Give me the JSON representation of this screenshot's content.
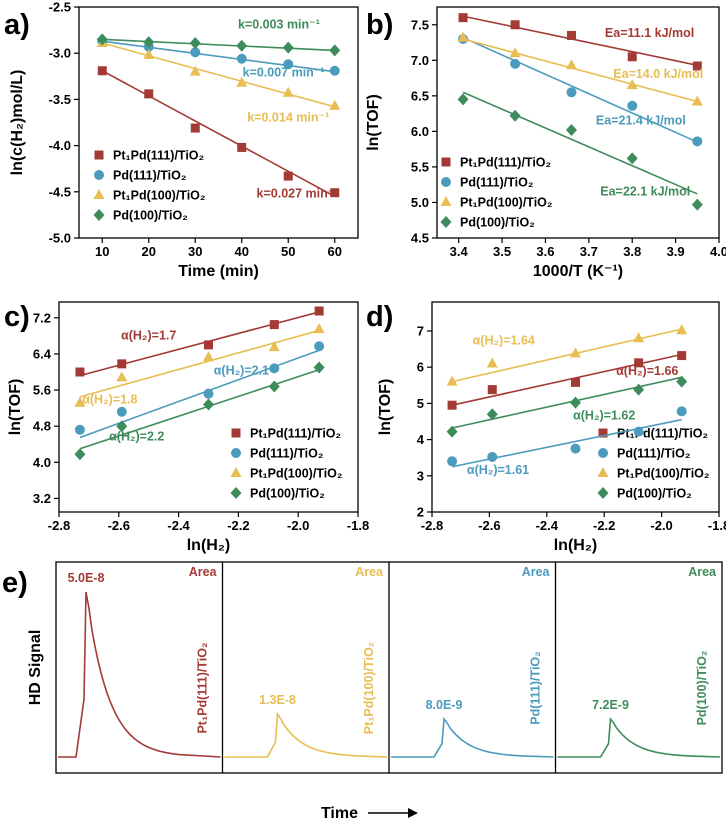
{
  "colors": {
    "pt_pd111": "#a33a35",
    "pd111": "#4b9bbd",
    "pt_pd100": "#e8bd52",
    "pd100": "#3e8c5c"
  },
  "chart_data": [
    {
      "panel": "a)",
      "type": "scatter",
      "xlabel": "Time (min)",
      "ylabel": "ln(c(H₂)mol/L)",
      "xlim": [
        5,
        65
      ],
      "ylim": [
        -5.0,
        -2.5
      ],
      "xticks": [
        10,
        20,
        30,
        40,
        50,
        60
      ],
      "yticks": [
        -5.0,
        -4.5,
        -4.0,
        -3.5,
        -3.0,
        -2.5
      ],
      "ydecimals": 1,
      "series": [
        {
          "name": "Pt₁Pd(111)/TiO₂",
          "key": "pt_pd111",
          "marker": "square",
          "x": [
            10,
            20,
            30,
            40,
            50,
            60
          ],
          "y": [
            -3.19,
            -3.44,
            -3.81,
            -4.02,
            -4.33,
            -4.51
          ],
          "fit": [
            [
              10,
              -3.19
            ],
            [
              60,
              -4.55
            ]
          ],
          "label": "k=0.027 min⁻¹",
          "label_at": [
            52,
            -4.56
          ]
        },
        {
          "name": "Pd(111)/TiO₂",
          "key": "pd111",
          "marker": "circle",
          "x": [
            10,
            20,
            30,
            40,
            50,
            60
          ],
          "y": [
            -2.87,
            -2.93,
            -2.99,
            -3.06,
            -3.12,
            -3.19
          ],
          "fit": [
            [
              10,
              -2.87
            ],
            [
              60,
              -3.2
            ]
          ],
          "label": "k=0.007 min⁻¹",
          "label_at": [
            49,
            -3.25
          ]
        },
        {
          "name": "Pt₁Pd(100)/TiO₂",
          "key": "pt_pd100",
          "marker": "triangle",
          "x": [
            10,
            20,
            30,
            40,
            50,
            60
          ],
          "y": [
            -2.89,
            -3.02,
            -3.2,
            -3.32,
            -3.43,
            -3.57
          ],
          "fit": [
            [
              10,
              -2.89
            ],
            [
              60,
              -3.58
            ]
          ],
          "label": "k=0.014 min⁻¹",
          "label_at": [
            50,
            -3.74
          ]
        },
        {
          "name": "Pd(100)/TiO₂",
          "key": "pd100",
          "marker": "diamond",
          "x": [
            10,
            20,
            30,
            40,
            50,
            60
          ],
          "y": [
            -2.85,
            -2.88,
            -2.89,
            -2.92,
            -2.94,
            -2.97
          ],
          "fit": [
            [
              10,
              -2.85
            ],
            [
              60,
              -2.97
            ]
          ],
          "label": "k=0.003 min⁻¹",
          "label_at": [
            48,
            -2.73
          ]
        }
      ]
    },
    {
      "panel": "b)",
      "type": "scatter",
      "xlabel": "1000/T (K⁻¹)",
      "ylabel": "ln(TOF)",
      "xlim": [
        3.35,
        4.0
      ],
      "ylim": [
        4.5,
        7.75
      ],
      "xticks": [
        3.4,
        3.5,
        3.6,
        3.7,
        3.8,
        3.9,
        4.0
      ],
      "yticks": [
        4.5,
        5.0,
        5.5,
        6.0,
        6.5,
        7.0,
        7.5
      ],
      "ydecimals": 1,
      "series": [
        {
          "name": "Pt₁Pd(111)/TiO₂",
          "key": "pt_pd111",
          "marker": "square",
          "x": [
            3.41,
            3.53,
            3.66,
            3.8,
            3.95
          ],
          "y": [
            7.6,
            7.5,
            7.35,
            7.05,
            6.92
          ],
          "fit": [
            [
              3.41,
              7.62
            ],
            [
              3.95,
              6.93
            ]
          ],
          "label": "Ea=11.1 kJ/mol",
          "label_at": [
            3.84,
            7.33
          ]
        },
        {
          "name": "Pd(111)/TiO₂",
          "key": "pd111",
          "marker": "circle",
          "x": [
            3.41,
            3.53,
            3.66,
            3.8,
            3.95
          ],
          "y": [
            7.3,
            6.95,
            6.55,
            6.36,
            5.86
          ],
          "fit": [
            [
              3.41,
              7.32
            ],
            [
              3.95,
              5.85
            ]
          ],
          "label": "Ea=21.4 kJ/mol",
          "label_at": [
            3.82,
            6.1
          ]
        },
        {
          "name": "Pt₁Pd(100)/TiO₂",
          "key": "pt_pd100",
          "marker": "triangle",
          "x": [
            3.41,
            3.53,
            3.66,
            3.8,
            3.95
          ],
          "y": [
            7.32,
            7.1,
            6.93,
            6.65,
            6.42
          ],
          "fit": [
            [
              3.41,
              7.3
            ],
            [
              3.95,
              6.42
            ]
          ],
          "label": "Ea=14.0 kJ/mol",
          "label_at": [
            3.86,
            6.75
          ]
        },
        {
          "name": "Pd(100)/TiO₂",
          "key": "pd100",
          "marker": "diamond",
          "x": [
            3.41,
            3.53,
            3.66,
            3.8,
            3.95
          ],
          "y": [
            6.45,
            6.22,
            6.02,
            5.62,
            4.97
          ],
          "fit": [
            [
              3.41,
              6.55
            ],
            [
              3.95,
              5.12
            ]
          ],
          "label": "Ea=22.1 kJ/mol",
          "label_at": [
            3.83,
            5.1
          ]
        }
      ]
    },
    {
      "panel": "c)",
      "type": "scatter",
      "xlabel": "ln(H₂)",
      "ylabel": "ln(TOF)",
      "xlim": [
        -2.8,
        -1.8
      ],
      "ylim": [
        2.9,
        7.55
      ],
      "xticks": [
        -2.8,
        -2.6,
        -2.4,
        -2.2,
        -2.0,
        -1.8
      ],
      "yticks": [
        3.2,
        4.0,
        4.8,
        5.6,
        6.4,
        7.2
      ],
      "ydecimals": 1,
      "series": [
        {
          "name": "Pt₁Pd(111)/TiO₂",
          "key": "pt_pd111",
          "marker": "square",
          "x": [
            -2.73,
            -2.59,
            -2.3,
            -2.08,
            -1.93
          ],
          "y": [
            6.0,
            6.18,
            6.6,
            7.05,
            7.35
          ],
          "fit": [
            [
              -2.73,
              5.92
            ],
            [
              -1.93,
              7.33
            ]
          ],
          "label": "α(H₂)=1.7",
          "label_at": [
            -2.5,
            6.72
          ]
        },
        {
          "name": "Pd(111)/TiO₂",
          "key": "pd111",
          "marker": "circle",
          "x": [
            -2.73,
            -2.59,
            -2.3,
            -2.08,
            -1.93
          ],
          "y": [
            4.72,
            5.12,
            5.52,
            6.08,
            6.57
          ],
          "fit": [
            [
              -2.73,
              4.55
            ],
            [
              -1.93,
              6.48
            ]
          ],
          "label": "α(H₂)=2.1",
          "label_at": [
            -2.19,
            5.95
          ]
        },
        {
          "name": "Pt₁Pd(100)/TiO₂",
          "key": "pt_pd100",
          "marker": "triangle",
          "x": [
            -2.73,
            -2.59,
            -2.3,
            -2.08,
            -1.93
          ],
          "y": [
            5.32,
            5.88,
            6.33,
            6.55,
            6.95
          ],
          "fit": [
            [
              -2.73,
              5.45
            ],
            [
              -1.93,
              6.92
            ]
          ],
          "label": "α(H₂)=1.8",
          "label_at": [
            -2.63,
            5.3
          ]
        },
        {
          "name": "Pd(100)/TiO₂",
          "key": "pd100",
          "marker": "diamond",
          "x": [
            -2.73,
            -2.59,
            -2.3,
            -2.08,
            -1.93
          ],
          "y": [
            4.18,
            4.8,
            5.28,
            5.68,
            6.1
          ],
          "fit": [
            [
              -2.73,
              4.3
            ],
            [
              -1.93,
              6.05
            ]
          ],
          "label": "α(H₂)=2.2",
          "label_at": [
            -2.54,
            4.48
          ]
        }
      ]
    },
    {
      "panel": "d)",
      "type": "scatter",
      "xlabel": "ln(H₂)",
      "ylabel": "ln(TOF)",
      "xlim": [
        -2.8,
        -1.8
      ],
      "ylim": [
        2.0,
        7.8
      ],
      "xticks": [
        -2.8,
        -2.6,
        -2.4,
        -2.2,
        -2.0,
        -1.8
      ],
      "yticks": [
        2,
        3,
        4,
        5,
        6,
        7
      ],
      "ydecimals": 0,
      "series": [
        {
          "name": "Pt₁Pd(111)/TiO₂",
          "key": "pt_pd111",
          "marker": "square",
          "x": [
            -2.73,
            -2.59,
            -2.3,
            -2.08,
            -1.93
          ],
          "y": [
            4.95,
            5.38,
            5.58,
            6.12,
            6.32
          ],
          "fit": [
            [
              -2.73,
              4.95
            ],
            [
              -1.93,
              6.35
            ]
          ],
          "label": "α(H₂)=1.66",
          "label_at": [
            -2.05,
            5.78
          ]
        },
        {
          "name": "Pd(111)/TiO₂",
          "key": "pd111",
          "marker": "circle",
          "x": [
            -2.73,
            -2.59,
            -2.3,
            -2.08,
            -1.93
          ],
          "y": [
            3.4,
            3.52,
            3.75,
            4.22,
            4.78
          ],
          "fit": [
            [
              -2.73,
              3.25
            ],
            [
              -1.93,
              4.55
            ]
          ],
          "label": "α(H₂)=1.61",
          "label_at": [
            -2.57,
            3.05
          ]
        },
        {
          "name": "Pt₁Pd(100)/TiO₂",
          "key": "pt_pd100",
          "marker": "triangle",
          "x": [
            -2.73,
            -2.59,
            -2.3,
            -2.08,
            -1.93
          ],
          "y": [
            5.6,
            6.1,
            6.38,
            6.8,
            7.02
          ],
          "fit": [
            [
              -2.73,
              5.6
            ],
            [
              -1.93,
              7.05
            ]
          ],
          "label": "α(H₂)=1.64",
          "label_at": [
            -2.55,
            6.63
          ]
        },
        {
          "name": "Pd(100)/TiO₂",
          "key": "pd100",
          "marker": "diamond",
          "x": [
            -2.73,
            -2.59,
            -2.3,
            -2.08,
            -1.93
          ],
          "y": [
            4.22,
            4.7,
            5.02,
            5.38,
            5.6
          ],
          "fit": [
            [
              -2.73,
              4.32
            ],
            [
              -1.93,
              5.72
            ]
          ],
          "label": "α(H₂)=1.62",
          "label_at": [
            -2.2,
            4.55
          ]
        }
      ]
    },
    {
      "panel": "e)",
      "type": "line",
      "xlabel": "Time",
      "ylabel": "HD Signal",
      "series": [
        {
          "name": "Pt₁Pd(111)/TiO₂",
          "key": "pt_pd111",
          "peak": "5.0E-8",
          "peak_value": 5e-08,
          "tag": "Area"
        },
        {
          "name": "Pt₁Pd(100)/TiO₂",
          "key": "pt_pd100",
          "peak": "1.3E-8",
          "peak_value": 1.3e-08,
          "tag": "Area"
        },
        {
          "name": "Pd(111)/TiO₂",
          "key": "pd111",
          "peak": "8.0E-9",
          "peak_value": 8e-09,
          "tag": "Area"
        },
        {
          "name": "Pd(100)/TiO₂",
          "key": "pd100",
          "peak": "7.2E-9",
          "peak_value": 7.2e-09,
          "tag": "Area"
        }
      ]
    }
  ]
}
